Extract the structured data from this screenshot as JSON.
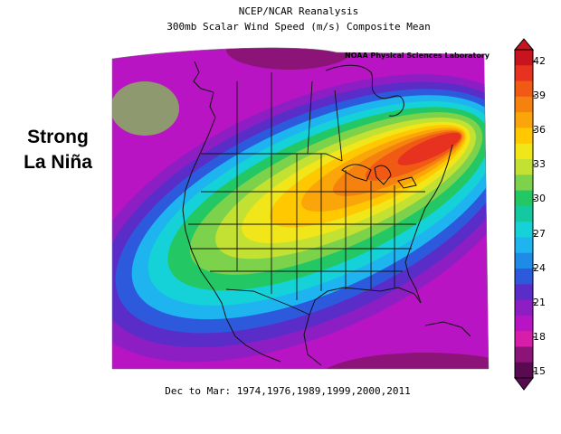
{
  "title_line1": "NCEP/NCAR Reanalysis",
  "title_line2": "300mb Scalar Wind Speed (m/s) Composite Mean",
  "credit": "NOAA Physical Sciences Laboratory",
  "side_label_line1": "Strong",
  "side_label_line2": "La Niña",
  "footer": "Dec to Mar: 1974,1976,1989,1999,2000,2011",
  "colorbar": {
    "ticks": [
      "42",
      "39",
      "36",
      "33",
      "30",
      "27",
      "24",
      "21",
      "18",
      "15"
    ],
    "colors": [
      "#c8141e",
      "#e6321e",
      "#f05a14",
      "#f5820f",
      "#faa50a",
      "#ffc800",
      "#f0e619",
      "#c3e132",
      "#7dd24b",
      "#23c864",
      "#14c8a0",
      "#14d2d7",
      "#1eb4f0",
      "#1e8ce6",
      "#2d5adc",
      "#5a2dc8",
      "#8c1ec3",
      "#b914c3",
      "#d71eaa",
      "#8c1478",
      "#5a0a50"
    ]
  },
  "map": {
    "bands": [
      {
        "level": "17",
        "color": "#b914c3"
      },
      {
        "level": "19",
        "color": "#8c1ec3"
      },
      {
        "level": "21",
        "color": "#5a2dc8"
      },
      {
        "level": "23",
        "color": "#2d5adc"
      },
      {
        "level": "25",
        "color": "#1eb4f0"
      },
      {
        "level": "27",
        "color": "#14d2d7"
      },
      {
        "level": "29",
        "color": "#23c864"
      },
      {
        "level": "31",
        "color": "#7dd24b"
      },
      {
        "level": "32",
        "color": "#c3e132"
      },
      {
        "level": "33",
        "color": "#f0e619"
      },
      {
        "level": "35",
        "color": "#ffc800"
      },
      {
        "level": "37",
        "color": "#faa50a"
      },
      {
        "level": "38",
        "color": "#f5820f"
      },
      {
        "level": "40",
        "color": "#f05a14"
      },
      {
        "level": "42",
        "color": "#e6321e"
      }
    ]
  }
}
